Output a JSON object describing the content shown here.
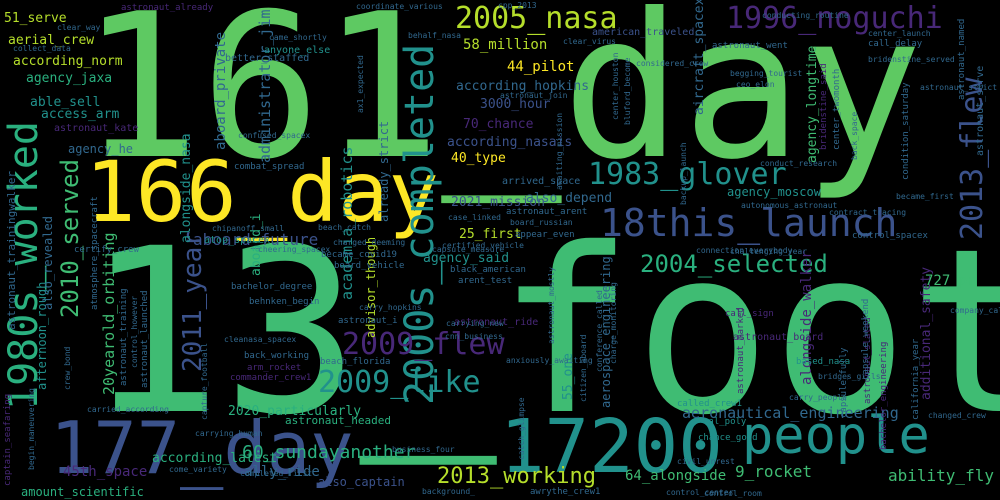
{
  "palette": {
    "background": "#000000",
    "green_light": "#5ec962",
    "green": "#3fbc73",
    "teal": "#21918c",
    "teal_light": "#2ab07f",
    "blue": "#3b528b",
    "blue_dark": "#31688e",
    "purple": "#482878",
    "purple_dark": "#440154",
    "yellow": "#fde725",
    "yellow_green": "#b5de2b"
  },
  "words": [
    "161_day",
    "13_foot",
    "166_day",
    "177_day",
    "17200",
    "people",
    "1980s_worked",
    "2005_nasa",
    "1996_noguchi",
    "18this_launch",
    "2000s_completed",
    "1983_glover",
    "2004_selected",
    "2013_flew",
    "2009_flew",
    "2009_like",
    "2010_served",
    "2011_year",
    "2013_working",
    "aboard_future",
    "60_sundayanother",
    "aeronautical_engineering",
    "ability_fly",
    "58_million",
    "44_pilot",
    "according_hopkins",
    "3000_hour",
    "according_nasais",
    "40_type",
    "70_chance",
    "2021_mission",
    "25_first",
    "also_depend",
    "agency_said",
    "agency_moscow",
    "20yearold_orbiting",
    "academia_robotics",
    "administrator_jim",
    "aboard_private",
    "alongside_nasa",
    "according_norm",
    "agency_jaxa",
    "aerial_crew",
    "51_serve",
    "able_sell",
    "access_arm",
    "astronaut_kate",
    "agency_he",
    "aircraft_spacex",
    "agency_longtime",
    "alongside_walker",
    "additional_safety",
    "727_pm",
    "9_rocket",
    "64_alongside",
    "2020_particularly",
    "ally_ride",
    "also_captain",
    "according_latest",
    "45th_space",
    "amount_scientific",
    "advisor_though",
    "already_strict",
    "afternoon_rough",
    "aerospace_engineering",
    "55_one",
    "aboard_i",
    "astronaut_headed",
    "astronaut_serve",
    "also_revealed",
    "astronaut_trainingwalker",
    "american_traveled",
    "astronaut_went",
    "astronaut_already",
    "anyone_else",
    "better_staffed",
    "came_shortly",
    "behalf_nasa",
    "clear_virus",
    "call_delay",
    "begging_tourist",
    "ceo_elon",
    "arrived_space",
    "astronaut_arent",
    "board_russian",
    "appear_even",
    "certified_vehicle",
    "black_american",
    "arent_test",
    "cnn_business",
    "astronaut_ride",
    "astronaut_mostly",
    "charged_deeming",
    "beach_catch",
    "chipanoff_small",
    "atop_spacex",
    "became_covid19",
    "board_vehicle",
    "behnken_begin",
    "carry_hopkins",
    "astronaut_i",
    "bachelor_degree",
    "back_working",
    "beach_florida",
    "cleanasa_spacex",
    "arm_rocket",
    "commander_crew1",
    "capture_football",
    "astronaut_launched",
    "astronaut_training",
    "atmosphere_spacecraft",
    "carried_according",
    "carrying_human",
    "captain_seafaring",
    "called_crew1",
    "cal_poly",
    "chance_good",
    "control_center",
    "control_room",
    "civil_unrest",
    "connection_everybody",
    "capsule_measure",
    "astronaut_marked",
    "astronaut_slated",
    "based_nasa",
    "bridges_gills",
    "carry_people",
    "california_year",
    "capsule_fully",
    "capsule_weekend",
    "bachelor_engineering",
    "changed_crew",
    "company_called",
    "contract_tracing",
    "control_spacex",
    "autonomous_astronaut",
    "became_first",
    "back_space",
    "condition_saturday",
    "bridenstine_said",
    "astronaut_named",
    "bridenstine_served",
    "center_launch",
    "center_twomonth",
    "astronaut_strict",
    "call_sign",
    "astronaut_board",
    "anxiously_awaiting",
    "awaiting_mission",
    "backup_launch",
    "confused_spacex",
    "combat_spread",
    "ax1_expected",
    "astronaut_join",
    "center_houston",
    "conducting_routine",
    "cpp_2013",
    "coordinate_various",
    "clear_way",
    "collect_data",
    "completed_first",
    "come_variety",
    "awrythe_crew1",
    "background_",
    "catch_glimpse",
    "business_four",
    "challenging_year",
    "carrying_new",
    "case_linked",
    "citizen_aboard",
    "bluford_become",
    "cheering_spacex",
    "certify_crew",
    "control_however",
    "begin_maneuvering",
    "conference_called",
    "charge_monitoring",
    "conduct_research",
    "considered_crew",
    "crew_bond",
    "cargoonly_dragon"
  ]
}
